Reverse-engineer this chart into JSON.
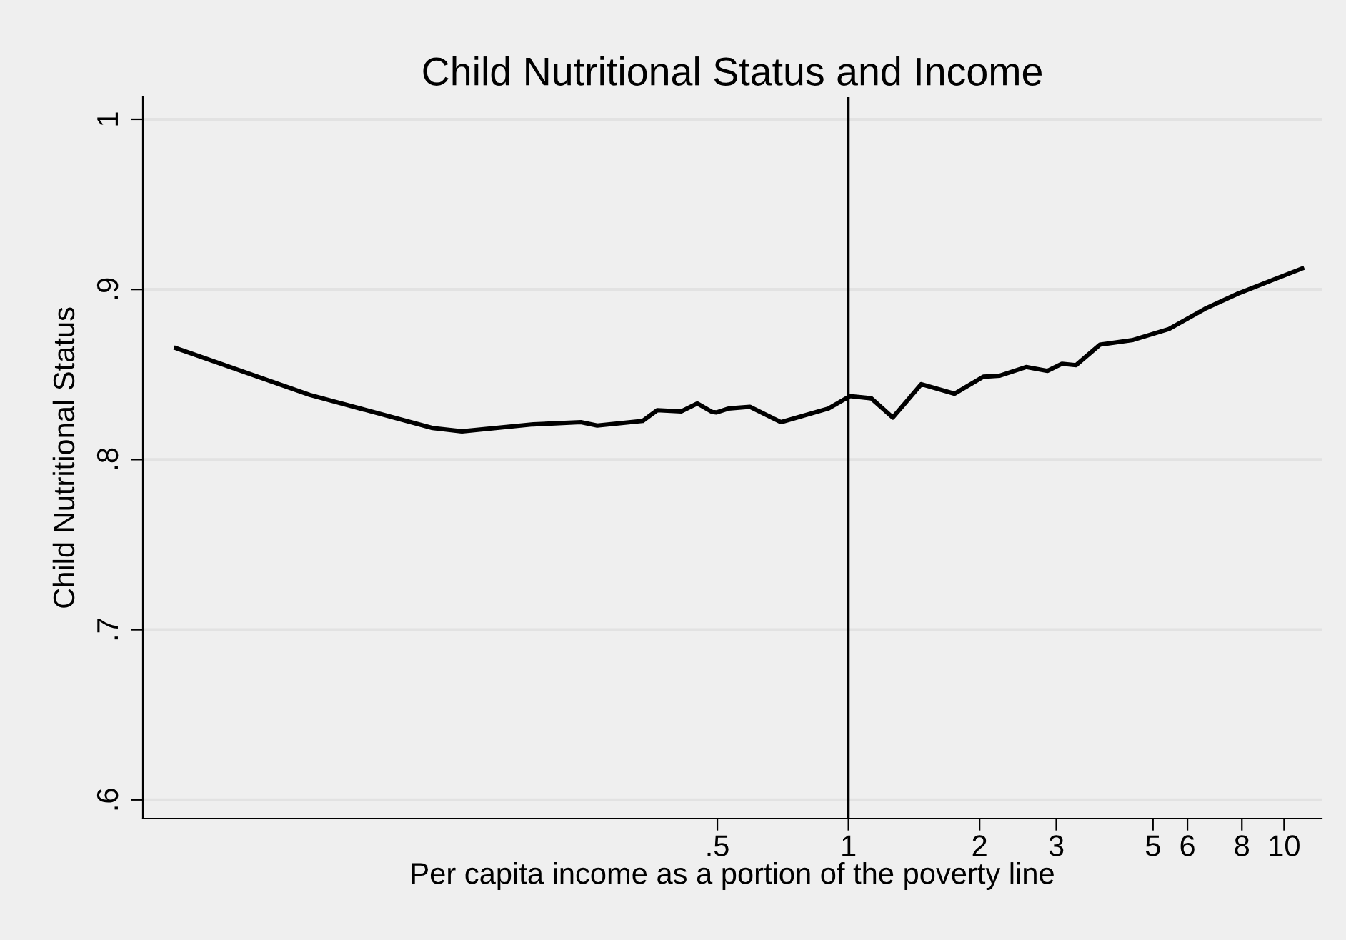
{
  "chart_data": {
    "type": "line",
    "title": "Child Nutritional Status and Income",
    "xlabel": "Per capita income as a portion of the poverty line",
    "ylabel": "Child Nutritional Status",
    "log": "x",
    "xlim": [
      0.024,
      12.2
    ],
    "ylim": [
      0.589,
      1.013
    ],
    "xticks": [
      {
        "value": 0.5,
        "label": ".5"
      },
      1,
      2,
      3,
      5,
      6,
      8,
      10
    ],
    "yticks": [
      {
        "value": 0.6,
        "label": ".6"
      },
      {
        "value": 0.7,
        "label": ".7"
      },
      {
        "value": 0.8,
        "label": ".8"
      },
      {
        "value": 0.9,
        "label": ".9"
      },
      1
    ],
    "grid": "y",
    "ref_lines": [
      {
        "axis": "x",
        "value": 1,
        "color": "#000000"
      }
    ],
    "series": [
      {
        "color": "#000000",
        "x": [
          0.0286,
          0.058,
          0.111,
          0.1296,
          0.189,
          0.243,
          0.265,
          0.337,
          0.364,
          0.413,
          0.45,
          0.486,
          0.498,
          0.531,
          0.594,
          0.7,
          0.9,
          1.0075,
          1.128,
          1.264,
          1.47,
          1.753,
          2.04,
          2.226,
          2.557,
          2.862,
          3.09,
          3.33,
          3.776,
          4.5,
          5.44,
          6.57,
          7.83,
          11.0
        ],
        "values": [
          0.8655,
          0.838,
          0.8185,
          0.8166,
          0.8207,
          0.822,
          0.82,
          0.8227,
          0.829,
          0.8283,
          0.833,
          0.828,
          0.8277,
          0.83,
          0.831,
          0.822,
          0.83,
          0.8373,
          0.836,
          0.8247,
          0.8443,
          0.8387,
          0.8487,
          0.8493,
          0.8544,
          0.8521,
          0.8563,
          0.8555,
          0.8675,
          0.8703,
          0.8767,
          0.8885,
          0.8975,
          0.9123
        ]
      }
    ]
  }
}
